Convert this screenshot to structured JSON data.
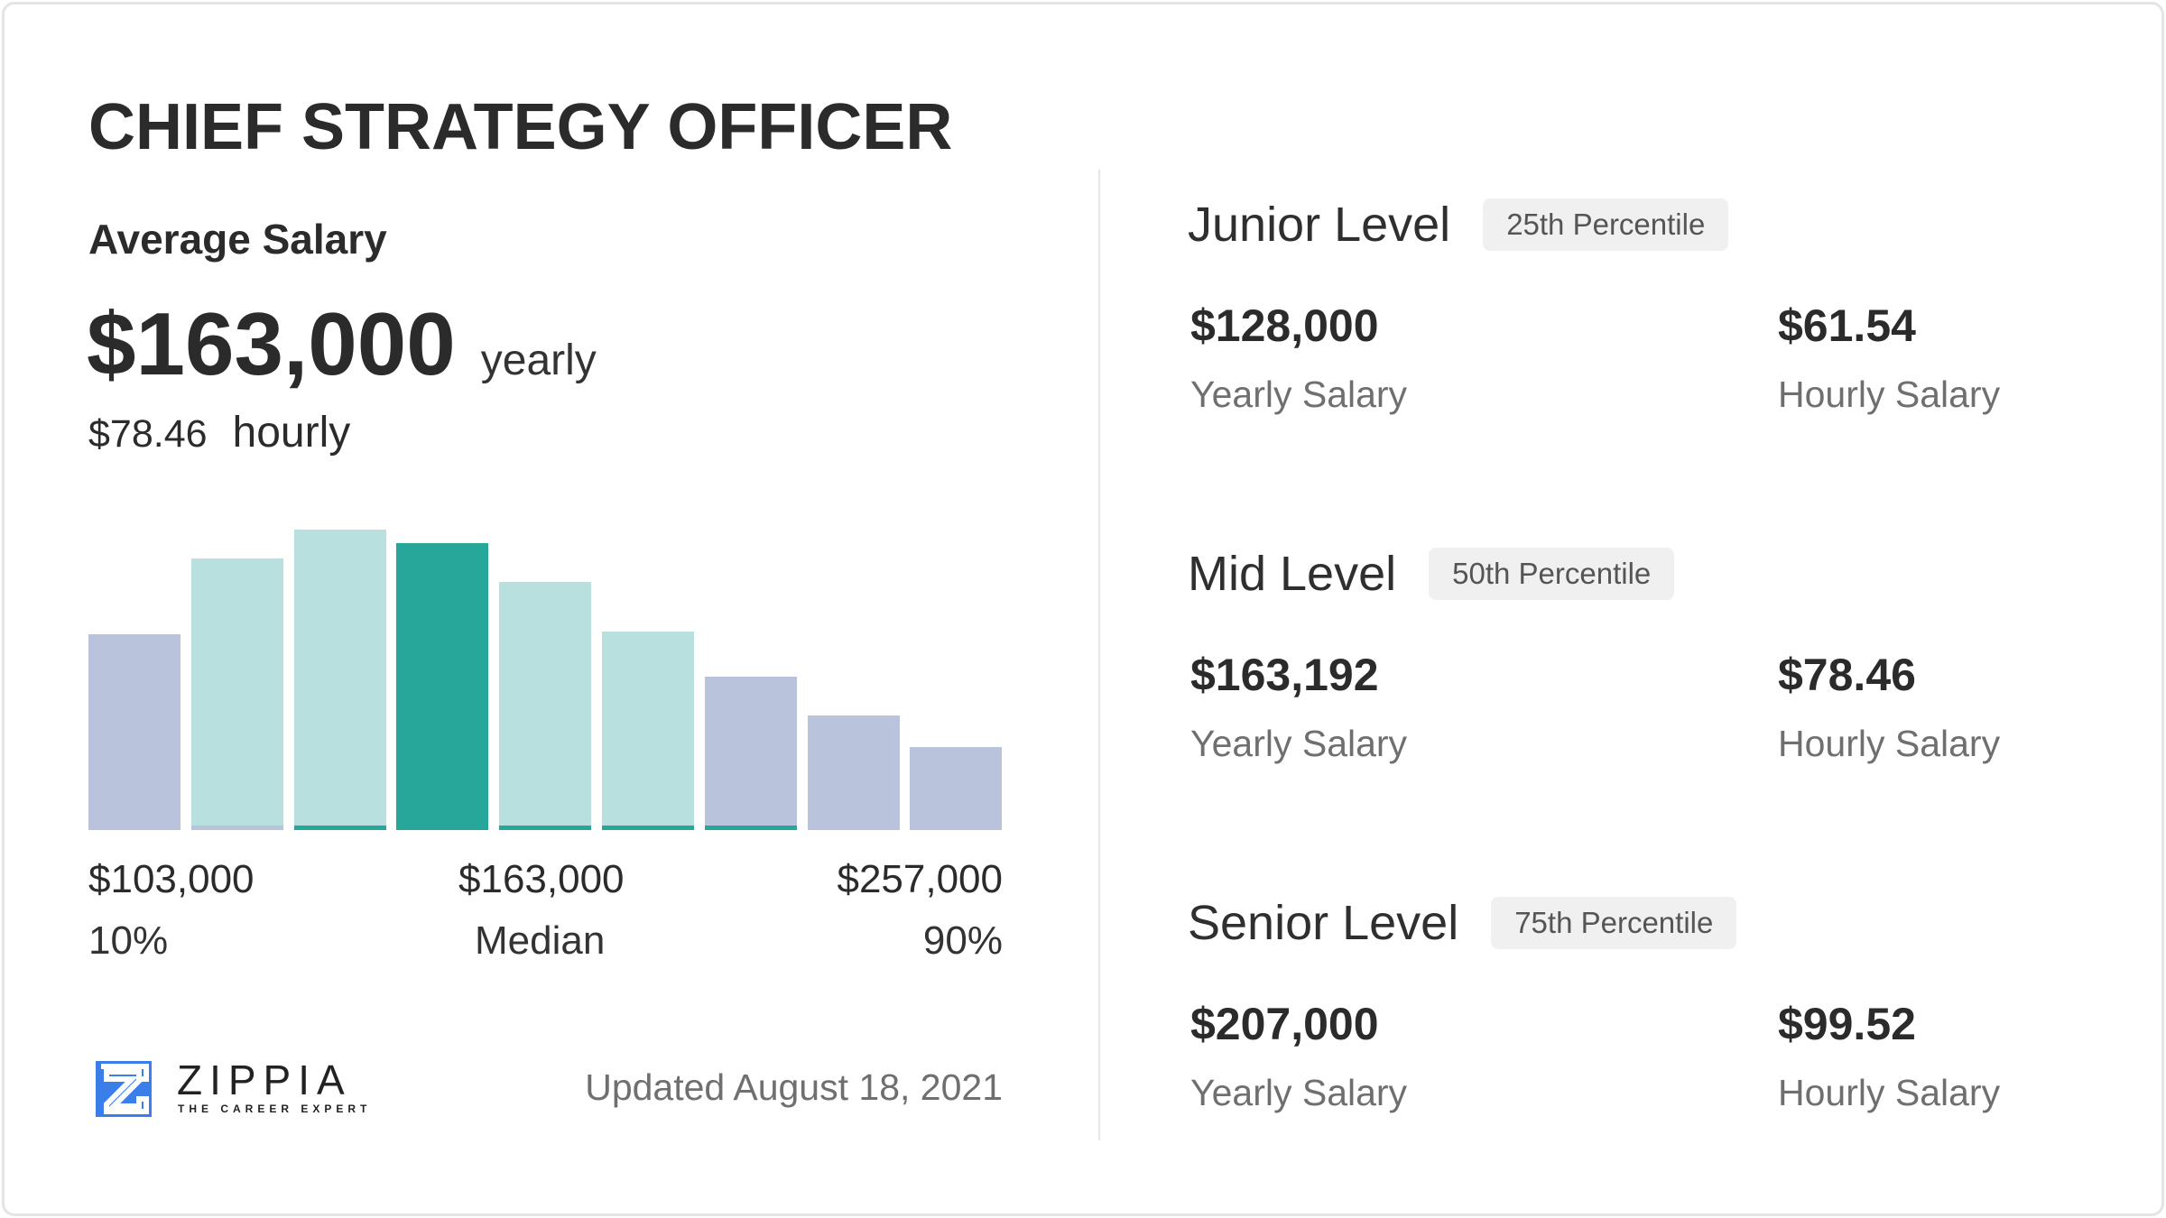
{
  "title": "CHIEF STRATEGY OFFICER",
  "average": {
    "label": "Average Salary",
    "yearly_value": "$163,000",
    "yearly_unit": "yearly",
    "hourly_value": "$78.46",
    "hourly_unit": "hourly"
  },
  "chart_data": {
    "type": "bar",
    "relative_heights": [
      142,
      197,
      218,
      208,
      180,
      144,
      111,
      83,
      60
    ],
    "bar_colors": [
      "#b9c4dc",
      "#b8e0de",
      "#b8e0de",
      "#27a79a",
      "#b8e0de",
      "#b8e0de",
      "#b9c4dc",
      "#b9c4dc",
      "#b9c4dc"
    ],
    "underline_colors": [
      null,
      "#b9c4dc",
      "#27a79a",
      null,
      "#27a79a",
      "#27a79a",
      "#27a79a",
      null,
      null
    ],
    "labels": [
      {
        "value": "$103,000",
        "caption": "10%"
      },
      {
        "value": "$163,000",
        "caption": "Median"
      },
      {
        "value": "$257,000",
        "caption": "90%"
      }
    ]
  },
  "levels": [
    {
      "name": "Junior Level",
      "badge": "25th Percentile",
      "yearly": "$128,000",
      "yearly_label": "Yearly Salary",
      "hourly": "$61.54",
      "hourly_label": "Hourly Salary"
    },
    {
      "name": "Mid Level",
      "badge": "50th Percentile",
      "yearly": "$163,192",
      "yearly_label": "Yearly Salary",
      "hourly": "$78.46",
      "hourly_label": "Hourly Salary"
    },
    {
      "name": "Senior Level",
      "badge": "75th Percentile",
      "yearly": "$207,000",
      "yearly_label": "Yearly Salary",
      "hourly": "$99.52",
      "hourly_label": "Hourly Salary"
    }
  ],
  "footer": {
    "brand": "ZIPPIA",
    "tagline": "THE CAREER EXPERT",
    "updated": "Updated August 18, 2021",
    "logo_color": "#3b7de9"
  }
}
